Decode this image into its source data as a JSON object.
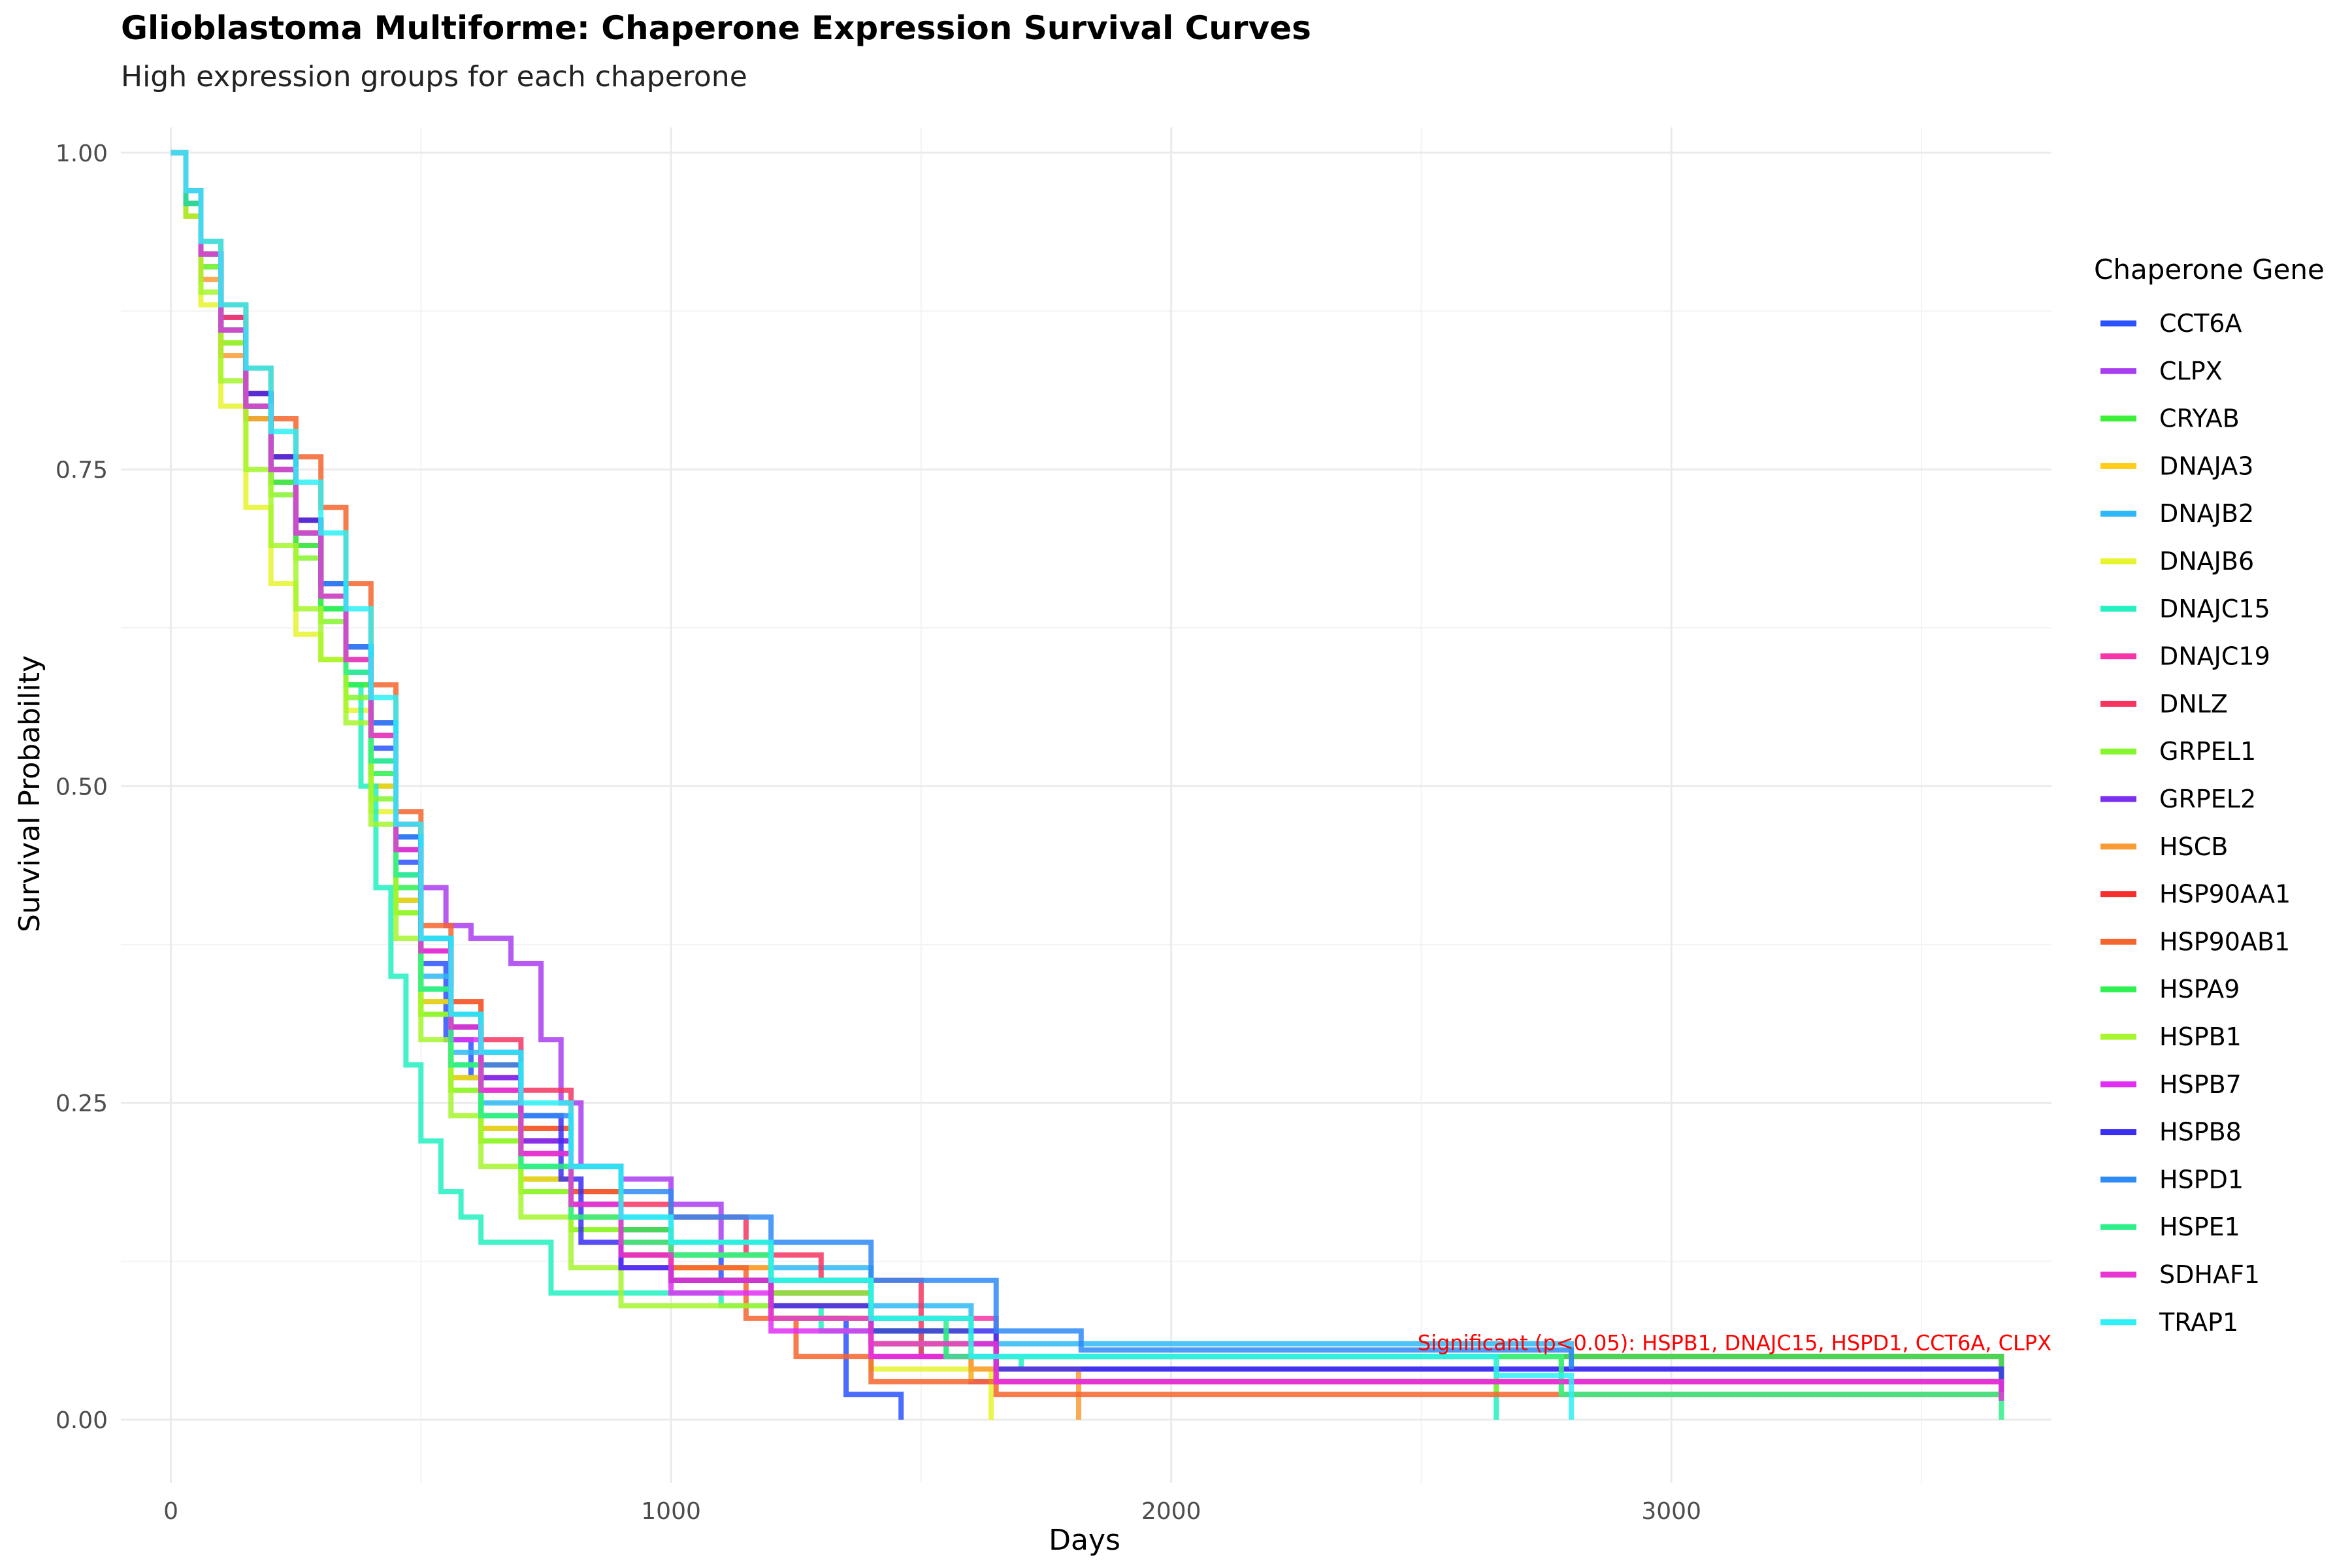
{
  "chart_data": {
    "type": "line",
    "step": true,
    "title": "Glioblastoma Multiforme: Chaperone Expression Survival Curves",
    "subtitle": "High expression groups for each chaperone",
    "xlabel": "Days",
    "ylabel": "Survival Probability",
    "xlim": [
      -100,
      3760
    ],
    "ylim": [
      -0.05,
      1.02
    ],
    "x_ticks": [
      0,
      1000,
      2000,
      3000
    ],
    "x_tick_labels": [
      "0",
      "1000",
      "2000",
      "3000"
    ],
    "x_minor_ticks": [
      500,
      1500,
      2500,
      3500
    ],
    "y_ticks": [
      0,
      0.25,
      0.5,
      0.75,
      1.0
    ],
    "y_tick_labels": [
      "0.00",
      "0.25",
      "0.50",
      "0.75",
      "1.00"
    ],
    "y_minor_ticks": [
      0.125,
      0.375,
      0.625,
      0.875
    ],
    "grid": true,
    "legend_title": "Chaperone Gene",
    "legend_position": "right",
    "annotation": {
      "text": "Significant (p<0.05): HSPB1, DNAJC15, HSPD1, CCT6A, CLPX",
      "x": 3850,
      "y": 0.055,
      "anchor": "end"
    },
    "series": [
      {
        "name": "CCT6A",
        "color": "#2a52ff",
        "x": [
          0,
          30,
          60,
          100,
          150,
          200,
          250,
          300,
          350,
          400,
          450,
          500,
          550,
          600,
          700,
          800,
          900,
          1000,
          1100,
          1200,
          1350,
          1460
        ],
        "y": [
          1,
          0.96,
          0.91,
          0.86,
          0.8,
          0.74,
          0.69,
          0.65,
          0.6,
          0.53,
          0.44,
          0.36,
          0.3,
          0.27,
          0.22,
          0.18,
          0.15,
          0.13,
          0.11,
          0.08,
          0.02,
          0
        ]
      },
      {
        "name": "CLPX",
        "color": "#a93df0",
        "x": [
          0,
          30,
          60,
          100,
          150,
          200,
          250,
          300,
          350,
          400,
          450,
          500,
          550,
          600,
          680,
          740,
          780,
          820,
          900,
          1000,
          1100,
          1200,
          1400,
          1600,
          3660
        ],
        "y": [
          1,
          0.97,
          0.92,
          0.87,
          0.81,
          0.75,
          0.7,
          0.65,
          0.6,
          0.54,
          0.47,
          0.42,
          0.39,
          0.38,
          0.36,
          0.3,
          0.25,
          0.2,
          0.19,
          0.17,
          0.13,
          0.1,
          0.06,
          0.03,
          0.015
        ]
      },
      {
        "name": "CRYAB",
        "color": "#3cf03a",
        "x": [
          0,
          30,
          60,
          100,
          150,
          200,
          250,
          300,
          350,
          400,
          450,
          500,
          560,
          620,
          700,
          800,
          900,
          1000,
          1200,
          1400,
          1550,
          2780
        ],
        "y": [
          1,
          0.96,
          0.92,
          0.86,
          0.8,
          0.74,
          0.69,
          0.64,
          0.58,
          0.5,
          0.41,
          0.33,
          0.27,
          0.23,
          0.19,
          0.16,
          0.15,
          0.14,
          0.11,
          0.07,
          0.05,
          0.03
        ]
      },
      {
        "name": "DNAJA3",
        "color": "#ffcc1a",
        "x": [
          0,
          30,
          60,
          100,
          150,
          200,
          250,
          300,
          350,
          400,
          450,
          500,
          560,
          620,
          700,
          800,
          900,
          1000,
          1200,
          1400,
          1600
        ],
        "y": [
          1,
          0.96,
          0.91,
          0.85,
          0.79,
          0.74,
          0.69,
          0.64,
          0.58,
          0.5,
          0.41,
          0.33,
          0.27,
          0.23,
          0.19,
          0.16,
          0.14,
          0.12,
          0.09,
          0.06,
          0.03
        ]
      },
      {
        "name": "DNAJB2",
        "color": "#2eb8f5",
        "x": [
          0,
          30,
          60,
          100,
          150,
          200,
          250,
          300,
          350,
          400,
          450,
          500,
          560,
          620,
          700,
          800,
          900,
          1000,
          1200,
          1400,
          1600,
          2800
        ],
        "y": [
          1,
          0.97,
          0.92,
          0.86,
          0.8,
          0.75,
          0.7,
          0.65,
          0.59,
          0.52,
          0.43,
          0.35,
          0.29,
          0.25,
          0.21,
          0.18,
          0.16,
          0.14,
          0.12,
          0.09,
          0.06,
          0.04
        ]
      },
      {
        "name": "DNAJB6",
        "color": "#e6f52e",
        "x": [
          0,
          30,
          60,
          100,
          150,
          200,
          250,
          300,
          350,
          400,
          450,
          500,
          560,
          620,
          700,
          800,
          900,
          1000,
          1200,
          1400,
          1640
        ],
        "y": [
          1,
          0.95,
          0.88,
          0.8,
          0.72,
          0.66,
          0.62,
          0.6,
          0.56,
          0.48,
          0.4,
          0.32,
          0.26,
          0.22,
          0.18,
          0.15,
          0.13,
          0.11,
          0.08,
          0.04,
          0
        ]
      },
      {
        "name": "DNAJC15",
        "color": "#22f0c0",
        "x": [
          0,
          30,
          60,
          100,
          150,
          200,
          250,
          300,
          350,
          380,
          410,
          440,
          470,
          500,
          540,
          580,
          620,
          680,
          760,
          900,
          1100,
          1300,
          1500,
          1700,
          2650
        ],
        "y": [
          1,
          0.96,
          0.91,
          0.86,
          0.8,
          0.74,
          0.69,
          0.64,
          0.58,
          0.5,
          0.42,
          0.35,
          0.28,
          0.22,
          0.18,
          0.16,
          0.14,
          0.14,
          0.1,
          0.1,
          0.09,
          0.07,
          0.05,
          0.04,
          0
        ]
      },
      {
        "name": "DNAJC19",
        "color": "#f535a8",
        "x": [
          0,
          30,
          60,
          100,
          150,
          200,
          250,
          300,
          350,
          400,
          450,
          500,
          560,
          620,
          700,
          800,
          900,
          1000,
          1200,
          1400,
          1650,
          3660
        ],
        "y": [
          1,
          0.97,
          0.92,
          0.86,
          0.8,
          0.75,
          0.7,
          0.65,
          0.6,
          0.55,
          0.47,
          0.38,
          0.32,
          0.27,
          0.22,
          0.18,
          0.15,
          0.13,
          0.1,
          0.08,
          0.05,
          0.015
        ]
      },
      {
        "name": "DNLZ",
        "color": "#f53560",
        "x": [
          0,
          30,
          60,
          100,
          150,
          200,
          250,
          300,
          350,
          400,
          450,
          500,
          560,
          620,
          700,
          800,
          900,
          1000,
          1150,
          1300,
          1500,
          3660
        ],
        "y": [
          1,
          0.97,
          0.92,
          0.87,
          0.81,
          0.76,
          0.71,
          0.66,
          0.61,
          0.55,
          0.46,
          0.38,
          0.33,
          0.3,
          0.26,
          0.2,
          0.17,
          0.16,
          0.13,
          0.11,
          0.05,
          0.015
        ]
      },
      {
        "name": "GRPEL1",
        "color": "#85f52e",
        "x": [
          0,
          30,
          60,
          100,
          150,
          200,
          250,
          300,
          350,
          400,
          450,
          500,
          560,
          620,
          700,
          800,
          900,
          1000,
          1200,
          1400,
          1600,
          2650
        ],
        "y": [
          1,
          0.96,
          0.91,
          0.85,
          0.79,
          0.73,
          0.68,
          0.63,
          0.57,
          0.49,
          0.4,
          0.32,
          0.26,
          0.22,
          0.18,
          0.15,
          0.14,
          0.13,
          0.1,
          0.07,
          0.05,
          0.02
        ]
      },
      {
        "name": "GRPEL2",
        "color": "#7a2ef0",
        "x": [
          0,
          30,
          60,
          100,
          150,
          200,
          250,
          300,
          350,
          400,
          450,
          500,
          560,
          620,
          700,
          800,
          900,
          1000,
          1200,
          1400,
          1650,
          3660
        ],
        "y": [
          1,
          0.97,
          0.92,
          0.86,
          0.8,
          0.75,
          0.7,
          0.65,
          0.6,
          0.54,
          0.45,
          0.37,
          0.31,
          0.27,
          0.22,
          0.17,
          0.13,
          0.11,
          0.09,
          0.06,
          0.04,
          0.015
        ]
      },
      {
        "name": "HSCB",
        "color": "#fa9a35",
        "x": [
          0,
          30,
          60,
          100,
          150,
          200,
          250,
          300,
          350,
          400,
          450,
          500,
          560,
          620,
          700,
          800,
          900,
          1000,
          1200,
          1400,
          1600,
          1815
        ],
        "y": [
          1,
          0.95,
          0.9,
          0.84,
          0.79,
          0.74,
          0.69,
          0.65,
          0.6,
          0.54,
          0.46,
          0.38,
          0.31,
          0.26,
          0.21,
          0.17,
          0.14,
          0.12,
          0.09,
          0.06,
          0.04,
          0
        ]
      },
      {
        "name": "HSP90AA1",
        "color": "#f52e2e",
        "x": [
          0,
          30,
          60,
          100,
          150,
          200,
          250,
          300,
          350,
          400,
          450,
          500,
          560,
          620,
          700,
          800,
          900,
          1000,
          1200,
          1400,
          1650,
          3660
        ],
        "y": [
          1,
          0.97,
          0.92,
          0.86,
          0.81,
          0.76,
          0.71,
          0.66,
          0.61,
          0.55,
          0.46,
          0.38,
          0.32,
          0.28,
          0.23,
          0.18,
          0.13,
          0.11,
          0.08,
          0.05,
          0.03,
          0.015
        ]
      },
      {
        "name": "HSP90AB1",
        "color": "#f5652e",
        "x": [
          0,
          30,
          60,
          100,
          150,
          200,
          250,
          300,
          350,
          400,
          450,
          500,
          560,
          620,
          700,
          800,
          900,
          1000,
          1150,
          1250,
          1400,
          1650,
          3660
        ],
        "y": [
          1,
          0.97,
          0.93,
          0.88,
          0.83,
          0.79,
          0.76,
          0.72,
          0.66,
          0.58,
          0.48,
          0.39,
          0.33,
          0.28,
          0.23,
          0.18,
          0.14,
          0.12,
          0.08,
          0.05,
          0.03,
          0.02,
          0.015
        ]
      },
      {
        "name": "HSPA9",
        "color": "#2ef050",
        "x": [
          0,
          30,
          60,
          100,
          150,
          200,
          250,
          300,
          350,
          400,
          450,
          500,
          560,
          620,
          700,
          800,
          900,
          1000,
          1200,
          1400,
          1600,
          3660
        ],
        "y": [
          1,
          0.96,
          0.92,
          0.86,
          0.8,
          0.74,
          0.69,
          0.64,
          0.58,
          0.51,
          0.42,
          0.34,
          0.28,
          0.24,
          0.2,
          0.17,
          0.15,
          0.14,
          0.11,
          0.08,
          0.05,
          0.02
        ]
      },
      {
        "name": "HSPB1",
        "color": "#a6f52e",
        "x": [
          0,
          30,
          60,
          100,
          150,
          200,
          250,
          300,
          350,
          400,
          450,
          500,
          560,
          620,
          700,
          800,
          900,
          1000,
          1200,
          1400,
          1600,
          2780
        ],
        "y": [
          1,
          0.95,
          0.89,
          0.82,
          0.75,
          0.69,
          0.64,
          0.6,
          0.55,
          0.47,
          0.38,
          0.3,
          0.24,
          0.2,
          0.16,
          0.12,
          0.09,
          0.09,
          0.08,
          0.06,
          0.05,
          0.02
        ]
      },
      {
        "name": "HSPB7",
        "color": "#e02ef5",
        "x": [
          0,
          30,
          60,
          100,
          150,
          200,
          250,
          300,
          350,
          400,
          450,
          500,
          560,
          620,
          700,
          800,
          900,
          1000,
          1200,
          1400,
          1650,
          3660
        ],
        "y": [
          1,
          0.97,
          0.92,
          0.86,
          0.8,
          0.75,
          0.7,
          0.66,
          0.61,
          0.55,
          0.46,
          0.37,
          0.3,
          0.26,
          0.21,
          0.17,
          0.12,
          0.1,
          0.07,
          0.05,
          0.03,
          0.015
        ]
      },
      {
        "name": "HSPB8",
        "color": "#3a2ef0",
        "x": [
          0,
          30,
          60,
          100,
          150,
          200,
          250,
          300,
          350,
          400,
          450,
          500,
          560,
          620,
          700,
          780,
          820,
          900,
          1000,
          1200,
          1400,
          1650,
          3660
        ],
        "y": [
          1,
          0.96,
          0.92,
          0.86,
          0.81,
          0.76,
          0.71,
          0.66,
          0.61,
          0.55,
          0.46,
          0.38,
          0.31,
          0.29,
          0.24,
          0.19,
          0.14,
          0.12,
          0.11,
          0.09,
          0.07,
          0.04,
          0.015
        ]
      },
      {
        "name": "HSPD1",
        "color": "#2e8af5",
        "x": [
          0,
          30,
          60,
          100,
          150,
          200,
          250,
          300,
          350,
          400,
          450,
          500,
          560,
          620,
          700,
          800,
          900,
          1000,
          1200,
          1400,
          1650,
          1820,
          2800
        ],
        "y": [
          1,
          0.97,
          0.92,
          0.86,
          0.8,
          0.75,
          0.7,
          0.66,
          0.61,
          0.55,
          0.46,
          0.38,
          0.32,
          0.28,
          0.24,
          0.2,
          0.18,
          0.16,
          0.14,
          0.11,
          0.07,
          0.055,
          0.04
        ]
      },
      {
        "name": "HSPE1",
        "color": "#2ef08a",
        "x": [
          0,
          30,
          60,
          100,
          150,
          200,
          250,
          300,
          350,
          400,
          450,
          500,
          560,
          620,
          700,
          800,
          900,
          1000,
          1200,
          1400,
          1550,
          2780,
          3660
        ],
        "y": [
          1,
          0.96,
          0.92,
          0.86,
          0.8,
          0.75,
          0.7,
          0.65,
          0.59,
          0.52,
          0.43,
          0.34,
          0.28,
          0.24,
          0.2,
          0.16,
          0.14,
          0.13,
          0.11,
          0.08,
          0.05,
          0.02,
          0
        ]
      },
      {
        "name": "SDHAF1",
        "color": "#e635d0",
        "x": [
          0,
          30,
          60,
          100,
          150,
          200,
          250,
          300,
          350,
          400,
          450,
          500,
          560,
          620,
          700,
          800,
          900,
          1000,
          1200,
          1400,
          1650,
          3660
        ],
        "y": [
          1,
          0.97,
          0.92,
          0.86,
          0.8,
          0.75,
          0.7,
          0.65,
          0.6,
          0.54,
          0.45,
          0.37,
          0.31,
          0.26,
          0.21,
          0.17,
          0.13,
          0.11,
          0.08,
          0.06,
          0.03,
          0.015
        ]
      },
      {
        "name": "TRAP1",
        "color": "#2ef0f5",
        "x": [
          0,
          30,
          60,
          100,
          150,
          200,
          250,
          300,
          350,
          400,
          450,
          500,
          560,
          620,
          700,
          800,
          900,
          1000,
          1200,
          1400,
          1600,
          2650,
          2800
        ],
        "y": [
          1,
          0.97,
          0.93,
          0.88,
          0.83,
          0.78,
          0.74,
          0.7,
          0.64,
          0.57,
          0.47,
          0.38,
          0.32,
          0.29,
          0.25,
          0.2,
          0.16,
          0.14,
          0.11,
          0.08,
          0.05,
          0.035,
          0
        ]
      }
    ]
  }
}
